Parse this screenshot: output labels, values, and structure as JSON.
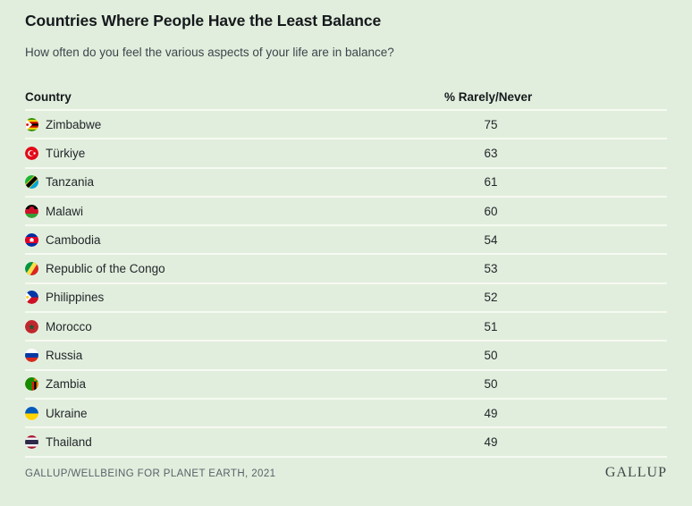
{
  "page": {
    "title": "Countries Where People Have the Least Balance",
    "subtitle": "How often do you feel the various aspects of your life are in balance?"
  },
  "table": {
    "columns": {
      "country": "Country",
      "value": "% Rarely/Never"
    },
    "rows": [
      {
        "country": "Zimbabwe",
        "value": "75",
        "flag_icon": "zimbabwe-flag-icon"
      },
      {
        "country": "Türkiye",
        "value": "63",
        "flag_icon": "turkiye-flag-icon"
      },
      {
        "country": "Tanzania",
        "value": "61",
        "flag_icon": "tanzania-flag-icon"
      },
      {
        "country": "Malawi",
        "value": "60",
        "flag_icon": "malawi-flag-icon"
      },
      {
        "country": "Cambodia",
        "value": "54",
        "flag_icon": "cambodia-flag-icon"
      },
      {
        "country": "Republic of the Congo",
        "value": "53",
        "flag_icon": "republic-of-the-congo-flag-icon"
      },
      {
        "country": "Philippines",
        "value": "52",
        "flag_icon": "philippines-flag-icon"
      },
      {
        "country": "Morocco",
        "value": "51",
        "flag_icon": "morocco-flag-icon"
      },
      {
        "country": "Russia",
        "value": "50",
        "flag_icon": "russia-flag-icon"
      },
      {
        "country": "Zambia",
        "value": "50",
        "flag_icon": "zambia-flag-icon"
      },
      {
        "country": "Ukraine",
        "value": "49",
        "flag_icon": "ukraine-flag-icon"
      },
      {
        "country": "Thailand",
        "value": "49",
        "flag_icon": "thailand-flag-icon"
      }
    ]
  },
  "footer": {
    "source": "GALLUP/WELLBEING FOR PLANET EARTH, 2021",
    "logo": "GALLUP"
  },
  "colors": {
    "background": "#e2eedd",
    "row_divider": "#f6faf2",
    "text": "#22272b",
    "muted_text": "#59616a"
  },
  "chart_data": {
    "type": "table",
    "title": "Countries Where People Have the Least Balance",
    "subtitle": "How often do you feel the various aspects of your life are in balance?",
    "value_label": "% Rarely/Never",
    "categories": [
      "Zimbabwe",
      "Türkiye",
      "Tanzania",
      "Malawi",
      "Cambodia",
      "Republic of the Congo",
      "Philippines",
      "Morocco",
      "Russia",
      "Zambia",
      "Ukraine",
      "Thailand"
    ],
    "values": [
      75,
      63,
      61,
      60,
      54,
      53,
      52,
      51,
      50,
      50,
      49,
      49
    ],
    "source": "GALLUP/WELLBEING FOR PLANET EARTH, 2021"
  }
}
